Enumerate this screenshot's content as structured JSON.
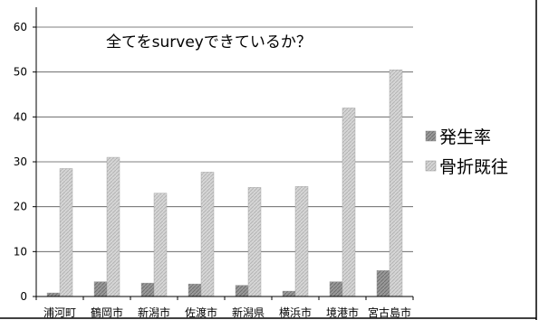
{
  "chart_data": {
    "type": "bar",
    "title": "全てをsurveyできているか？",
    "categories": [
      "浦河町",
      "鶴岡市",
      "新潟市",
      "佐渡市",
      "新潟県",
      "横浜市",
      "境港市",
      "宮古島市"
    ],
    "series": [
      {
        "name": "発生率",
        "values": [
          0.8,
          3.3,
          3.0,
          2.8,
          2.5,
          1.2,
          3.3,
          5.8
        ],
        "color": "#8c8c8c"
      },
      {
        "name": "骨折既往",
        "values": [
          28.5,
          31.0,
          23.0,
          27.7,
          24.3,
          24.5,
          42.0,
          50.5
        ],
        "color": "#c8c8c8"
      }
    ],
    "ylim": [
      0,
      60
    ],
    "yticks": [
      0,
      10,
      20,
      30,
      40,
      50,
      60
    ],
    "grid": true,
    "legend": "right"
  }
}
